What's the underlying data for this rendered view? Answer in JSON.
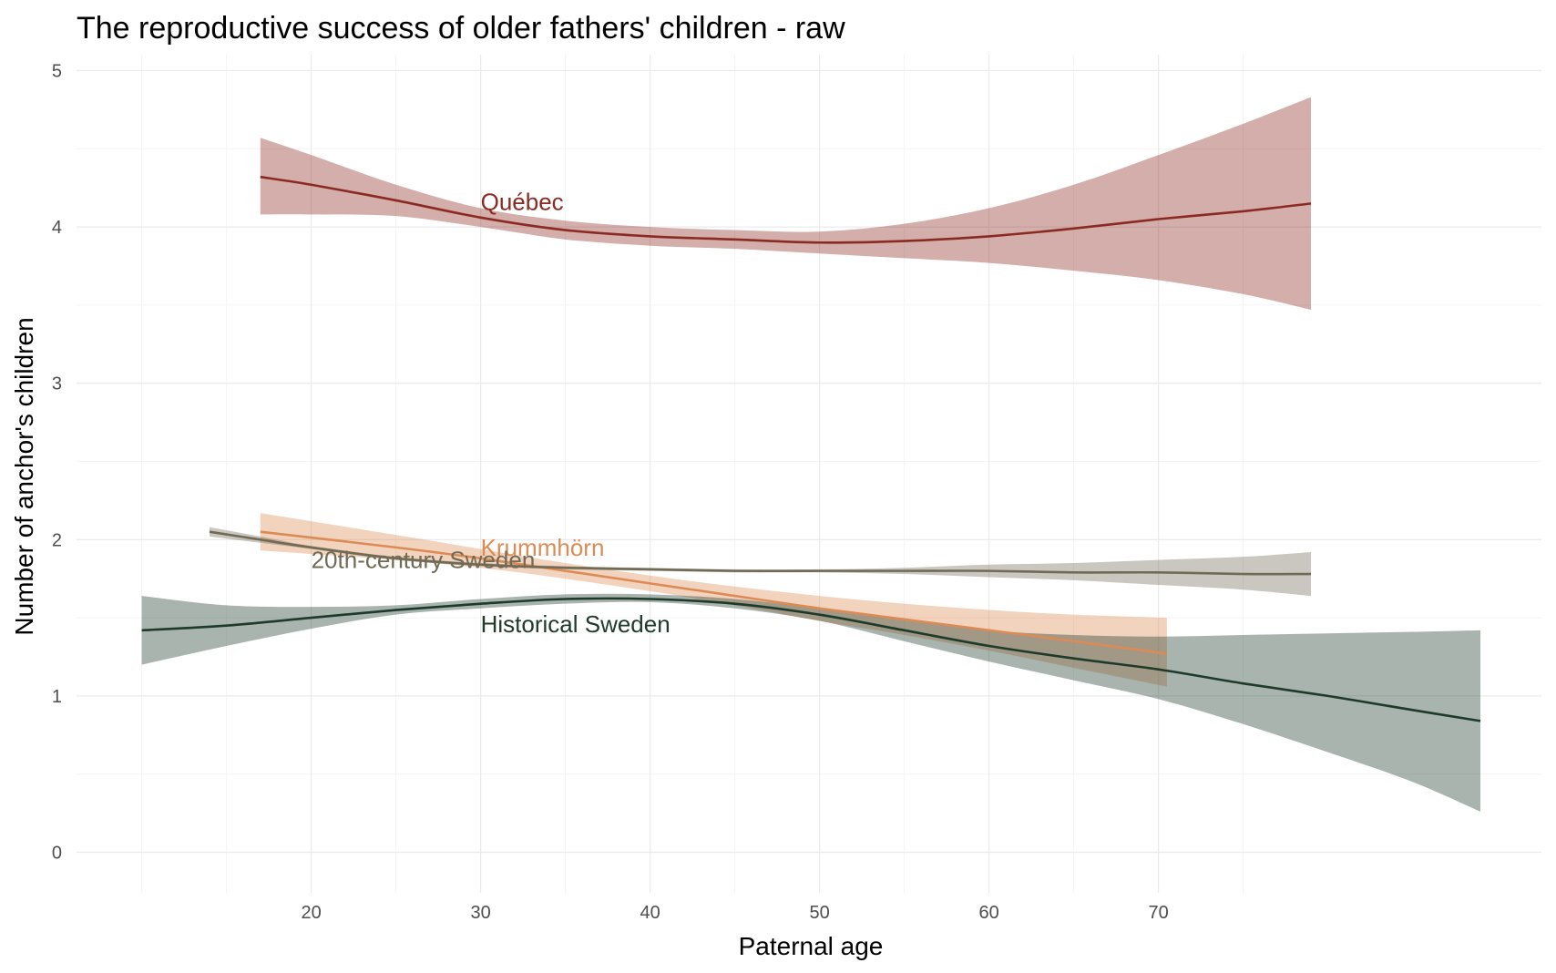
{
  "chart_data": {
    "type": "line",
    "title": "The reproductive success of older fathers' children - raw",
    "xlabel": "Paternal age",
    "ylabel": "Number of anchor's children",
    "xlim": [
      10,
      88
    ],
    "ylim": [
      0,
      5
    ],
    "x_ticks": [
      20,
      30,
      40,
      50,
      60,
      70
    ],
    "y_ticks": [
      0,
      1,
      2,
      3,
      4,
      5
    ],
    "grid": true,
    "legend": "none (direct labels)",
    "series": [
      {
        "name": "Québec",
        "color": "#8b2a22",
        "label_at": [
          30,
          4.16
        ],
        "x": [
          17,
          20,
          25,
          30,
          35,
          40,
          45,
          50,
          55,
          60,
          65,
          70,
          75,
          79
        ],
        "y": [
          4.32,
          4.27,
          4.17,
          4.06,
          3.98,
          3.94,
          3.92,
          3.9,
          3.91,
          3.94,
          3.99,
          4.05,
          4.1,
          4.15
        ],
        "lower": [
          4.08,
          4.08,
          4.07,
          4.0,
          3.92,
          3.88,
          3.86,
          3.83,
          3.8,
          3.77,
          3.72,
          3.66,
          3.57,
          3.47
        ],
        "upper": [
          4.57,
          4.46,
          4.27,
          4.12,
          4.04,
          4.0,
          3.98,
          3.97,
          4.02,
          4.12,
          4.27,
          4.46,
          4.66,
          4.83
        ]
      },
      {
        "name": "Krummhörn",
        "color": "#dc8b55",
        "label_at": [
          30,
          1.95
        ],
        "x": [
          17,
          25,
          30,
          35,
          40,
          45,
          50,
          55,
          60,
          65,
          70.5
        ],
        "y": [
          2.05,
          1.95,
          1.88,
          1.8,
          1.72,
          1.64,
          1.56,
          1.49,
          1.42,
          1.35,
          1.27
        ],
        "lower": [
          1.93,
          1.87,
          1.82,
          1.75,
          1.67,
          1.58,
          1.48,
          1.39,
          1.29,
          1.18,
          1.06
        ],
        "upper": [
          2.17,
          2.03,
          1.94,
          1.85,
          1.77,
          1.7,
          1.64,
          1.59,
          1.55,
          1.52,
          1.5
        ]
      },
      {
        "name": "20th-century Sweden",
        "color": "#716b56",
        "label_at": [
          20,
          1.87
        ],
        "x": [
          14,
          17,
          20,
          25,
          30,
          35,
          40,
          45,
          50,
          55,
          60,
          65,
          70,
          75,
          79
        ],
        "y": [
          2.05,
          2.0,
          1.95,
          1.88,
          1.84,
          1.82,
          1.81,
          1.8,
          1.8,
          1.8,
          1.8,
          1.79,
          1.79,
          1.78,
          1.78
        ],
        "lower": [
          2.02,
          1.98,
          1.94,
          1.87,
          1.83,
          1.81,
          1.8,
          1.79,
          1.79,
          1.78,
          1.76,
          1.74,
          1.71,
          1.68,
          1.64
        ],
        "upper": [
          2.08,
          2.02,
          1.96,
          1.89,
          1.85,
          1.83,
          1.82,
          1.81,
          1.81,
          1.82,
          1.84,
          1.85,
          1.87,
          1.89,
          1.92
        ]
      },
      {
        "name": "Historical Sweden",
        "color": "#1d3a2a",
        "label_at": [
          30,
          1.46
        ],
        "x": [
          10,
          15,
          20,
          25,
          30,
          35,
          40,
          45,
          50,
          55,
          60,
          65,
          70,
          75,
          80,
          85,
          89
        ],
        "y": [
          1.42,
          1.45,
          1.5,
          1.55,
          1.59,
          1.62,
          1.62,
          1.59,
          1.52,
          1.42,
          1.32,
          1.24,
          1.17,
          1.08,
          1.0,
          0.91,
          0.84
        ],
        "lower": [
          1.2,
          1.32,
          1.43,
          1.52,
          1.56,
          1.59,
          1.6,
          1.56,
          1.48,
          1.35,
          1.22,
          1.1,
          0.98,
          0.82,
          0.64,
          0.45,
          0.26
        ],
        "upper": [
          1.64,
          1.58,
          1.57,
          1.58,
          1.62,
          1.65,
          1.65,
          1.62,
          1.56,
          1.49,
          1.42,
          1.39,
          1.38,
          1.39,
          1.4,
          1.41,
          1.42
        ]
      }
    ]
  }
}
